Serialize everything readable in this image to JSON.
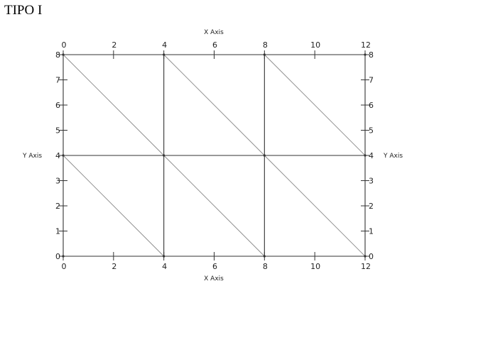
{
  "page": {
    "title": "TIPO I"
  },
  "diagram": {
    "type": "triangular-mesh",
    "x_range": [
      0,
      12
    ],
    "y_range": [
      0,
      8
    ],
    "x_ticks": [
      0,
      2,
      4,
      6,
      8,
      10,
      12
    ],
    "y_ticks": [
      0,
      1,
      2,
      3,
      4,
      5,
      6,
      7,
      8
    ],
    "top_axis_title": "X Axis",
    "bottom_axis_title": "X Axis",
    "left_axis_title": "Y Axis",
    "right_axis_title": "Y Axis",
    "nodes": [
      [
        0,
        0
      ],
      [
        4,
        0
      ],
      [
        8,
        0
      ],
      [
        12,
        0
      ],
      [
        0,
        4
      ],
      [
        4,
        4
      ],
      [
        8,
        4
      ],
      [
        12,
        4
      ],
      [
        0,
        8
      ],
      [
        4,
        8
      ],
      [
        8,
        8
      ],
      [
        12,
        8
      ]
    ],
    "edges": [
      [
        [
          0,
          0
        ],
        [
          12,
          0
        ]
      ],
      [
        [
          0,
          4
        ],
        [
          12,
          4
        ]
      ],
      [
        [
          0,
          8
        ],
        [
          12,
          8
        ]
      ],
      [
        [
          0,
          0
        ],
        [
          0,
          8
        ]
      ],
      [
        [
          4,
          0
        ],
        [
          4,
          8
        ]
      ],
      [
        [
          8,
          0
        ],
        [
          8,
          8
        ]
      ],
      [
        [
          12,
          0
        ],
        [
          12,
          8
        ]
      ],
      [
        [
          0,
          8
        ],
        [
          4,
          4
        ]
      ],
      [
        [
          4,
          8
        ],
        [
          8,
          4
        ]
      ],
      [
        [
          8,
          8
        ],
        [
          12,
          4
        ]
      ],
      [
        [
          0,
          4
        ],
        [
          4,
          0
        ]
      ],
      [
        [
          4,
          4
        ],
        [
          8,
          0
        ]
      ],
      [
        [
          8,
          4
        ],
        [
          12,
          0
        ]
      ]
    ],
    "colors": {
      "mesh_line": "#333333",
      "diagonal_line": "#8a8a8a",
      "tick": "#333333"
    }
  }
}
